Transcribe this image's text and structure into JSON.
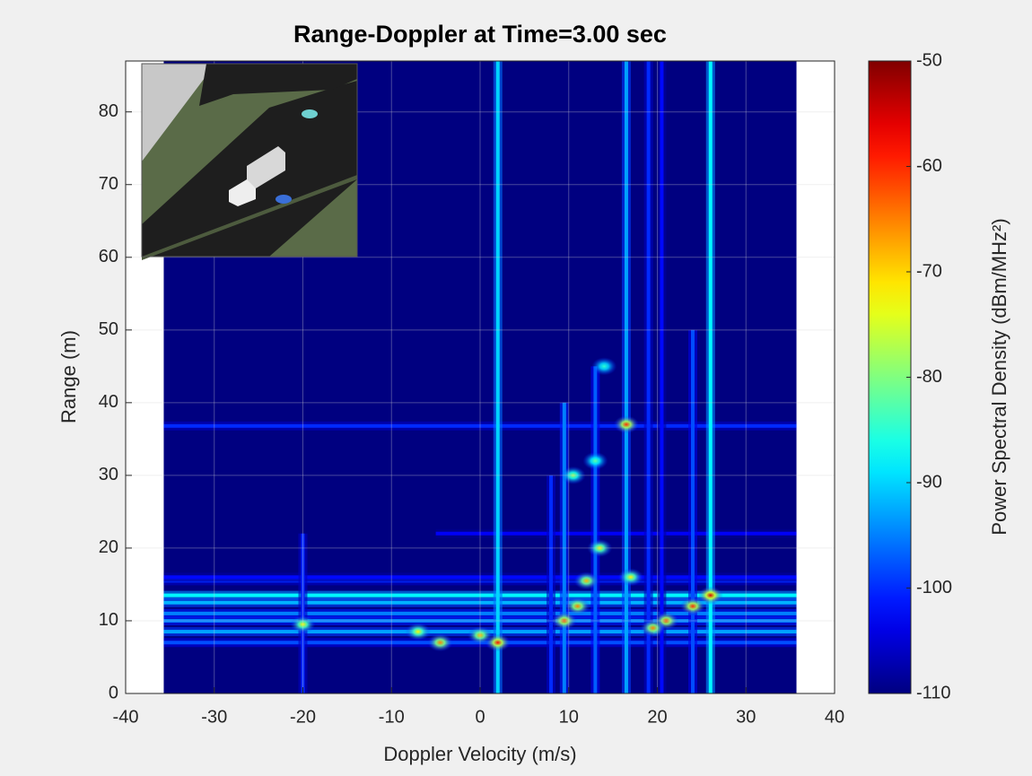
{
  "chart_data": {
    "type": "heatmap",
    "title": "Range-Doppler at Time=3.00 sec",
    "x_label": "Doppler Velocity (m/s)",
    "y_label": "Range (m)",
    "colorbar_label": "Power Spectral Density (dBm/MHz²)",
    "colormap": "jet",
    "xlim": [
      -40,
      40
    ],
    "ylim": [
      0,
      87
    ],
    "xticks": [
      -40,
      -30,
      -20,
      -10,
      0,
      10,
      20,
      30,
      40
    ],
    "yticks": [
      0,
      10,
      20,
      30,
      40,
      50,
      60,
      70,
      80
    ],
    "clim": [
      -110,
      -50
    ],
    "cticks": [
      -50,
      -60,
      -70,
      -80,
      -90,
      -100,
      -110
    ],
    "grid": true,
    "data_xrange": [
      -35.7,
      35.7
    ],
    "background_level": -110,
    "rows": [
      {
        "range": 13.5,
        "level": -88,
        "doppler_span": [
          -35.7,
          35.7
        ]
      },
      {
        "range": 12.5,
        "level": -92,
        "doppler_span": [
          -35.7,
          35.7
        ]
      },
      {
        "range": 11,
        "level": -95,
        "doppler_span": [
          -35.7,
          35.7
        ]
      },
      {
        "range": 10,
        "level": -95,
        "doppler_span": [
          -35.7,
          35.7
        ]
      },
      {
        "range": 8.5,
        "level": -93,
        "doppler_span": [
          -35.7,
          35.7
        ]
      },
      {
        "range": 7,
        "level": -98,
        "doppler_span": [
          -35.7,
          35.7
        ]
      },
      {
        "range": 15.5,
        "level": -100,
        "doppler_span": [
          -35.7,
          35.7
        ]
      },
      {
        "range": 16,
        "level": -102,
        "doppler_span": [
          -35.7,
          35.7
        ]
      },
      {
        "range": 22,
        "level": -103,
        "doppler_span": [
          -5,
          35.7
        ]
      },
      {
        "range": 36.8,
        "level": -100,
        "doppler_span": [
          -35.7,
          35.7
        ]
      }
    ],
    "columns": [
      {
        "doppler": 2,
        "level": -90,
        "range_span": [
          0,
          87
        ]
      },
      {
        "doppler": 16.5,
        "level": -93,
        "range_span": [
          0,
          87
        ]
      },
      {
        "doppler": 26,
        "level": -88,
        "range_span": [
          0,
          87
        ]
      },
      {
        "doppler": 9.5,
        "level": -95,
        "range_span": [
          0,
          40
        ]
      },
      {
        "doppler": 13,
        "level": -97,
        "range_span": [
          0,
          45
        ]
      },
      {
        "doppler": -20,
        "level": -100,
        "range_span": [
          0,
          22
        ]
      },
      {
        "doppler": 24,
        "level": -98,
        "range_span": [
          0,
          50
        ]
      },
      {
        "doppler": 19,
        "level": -100,
        "range_span": [
          0,
          87
        ]
      },
      {
        "doppler": 20.5,
        "level": -102,
        "range_span": [
          0,
          87
        ]
      },
      {
        "doppler": 8,
        "level": -100,
        "range_span": [
          0,
          30
        ]
      }
    ],
    "peaks": [
      {
        "doppler": 2,
        "range": 7,
        "level": -58
      },
      {
        "doppler": -4.5,
        "range": 7,
        "level": -65
      },
      {
        "doppler": 0,
        "range": 8,
        "level": -68
      },
      {
        "doppler": 16.5,
        "range": 37,
        "level": -60
      },
      {
        "doppler": 26,
        "range": 13.5,
        "level": -55
      },
      {
        "doppler": 24,
        "range": 12,
        "level": -60
      },
      {
        "doppler": 21,
        "range": 10,
        "level": -62
      },
      {
        "doppler": 19.5,
        "range": 9,
        "level": -65
      },
      {
        "doppler": 9.5,
        "range": 10,
        "level": -62
      },
      {
        "doppler": 11,
        "range": 12,
        "level": -65
      },
      {
        "doppler": 12,
        "range": 15.5,
        "level": -68
      },
      {
        "doppler": 13.5,
        "range": 20,
        "level": -72
      },
      {
        "doppler": 10.5,
        "range": 30,
        "level": -78
      },
      {
        "doppler": -20,
        "range": 9.5,
        "level": -72
      },
      {
        "doppler": 14,
        "range": 45,
        "level": -85
      },
      {
        "doppler": 13,
        "range": 32,
        "level": -82
      },
      {
        "doppler": -7,
        "range": 8.5,
        "level": -72
      },
      {
        "doppler": 17,
        "range": 16,
        "level": -72
      }
    ]
  }
}
